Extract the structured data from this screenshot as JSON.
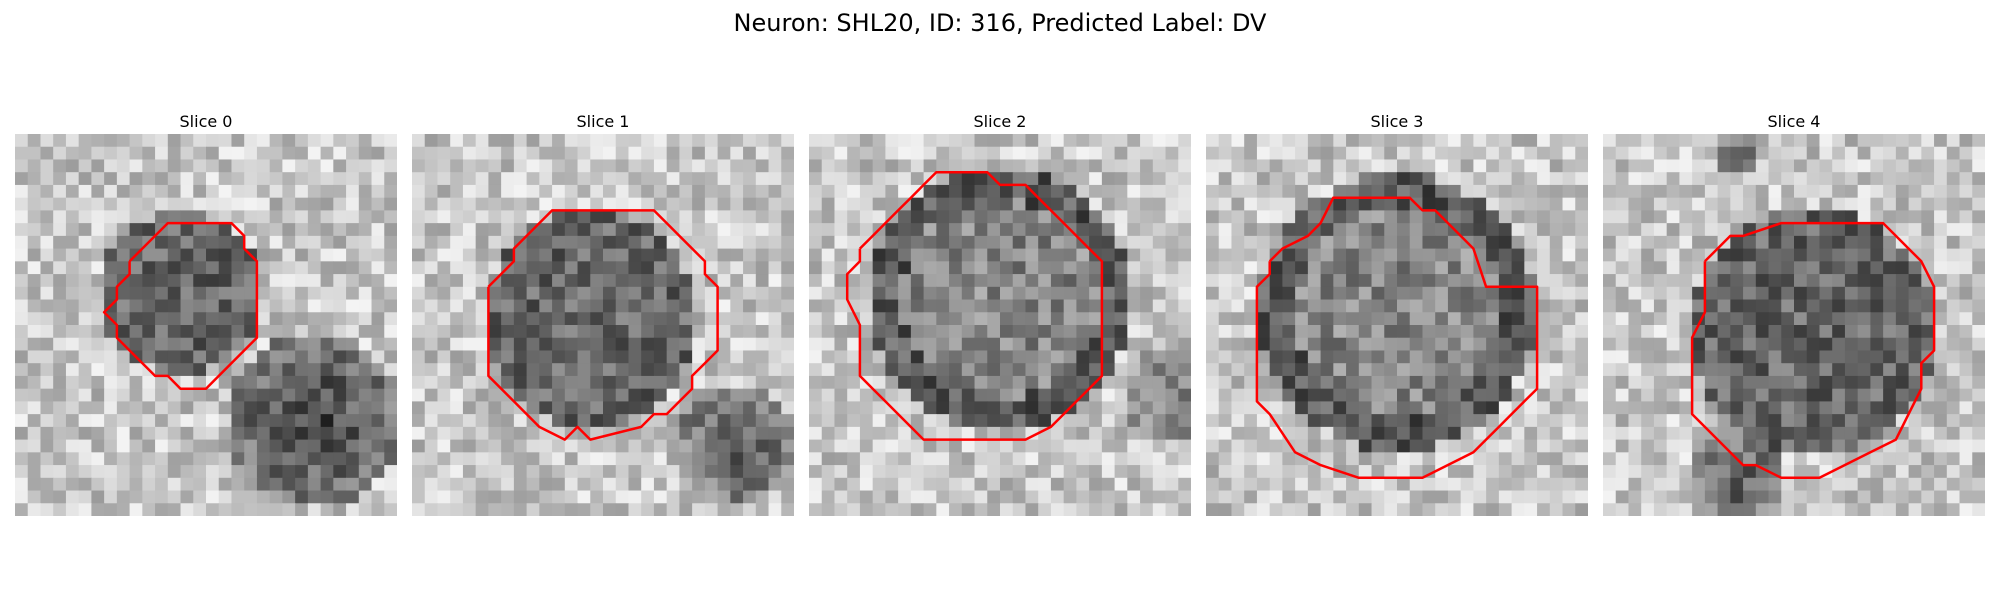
{
  "figure": {
    "title": "Neuron: SHL20, ID: 316, Predicted Label: DV"
  },
  "panels": [
    {
      "title": "Slice 0"
    },
    {
      "title": "Slice 1"
    },
    {
      "title": "Slice 2"
    },
    {
      "title": "Slice 3"
    },
    {
      "title": "Slice 4"
    }
  ],
  "colors": {
    "contour": "#ff0000",
    "background": "#ffffff"
  }
}
